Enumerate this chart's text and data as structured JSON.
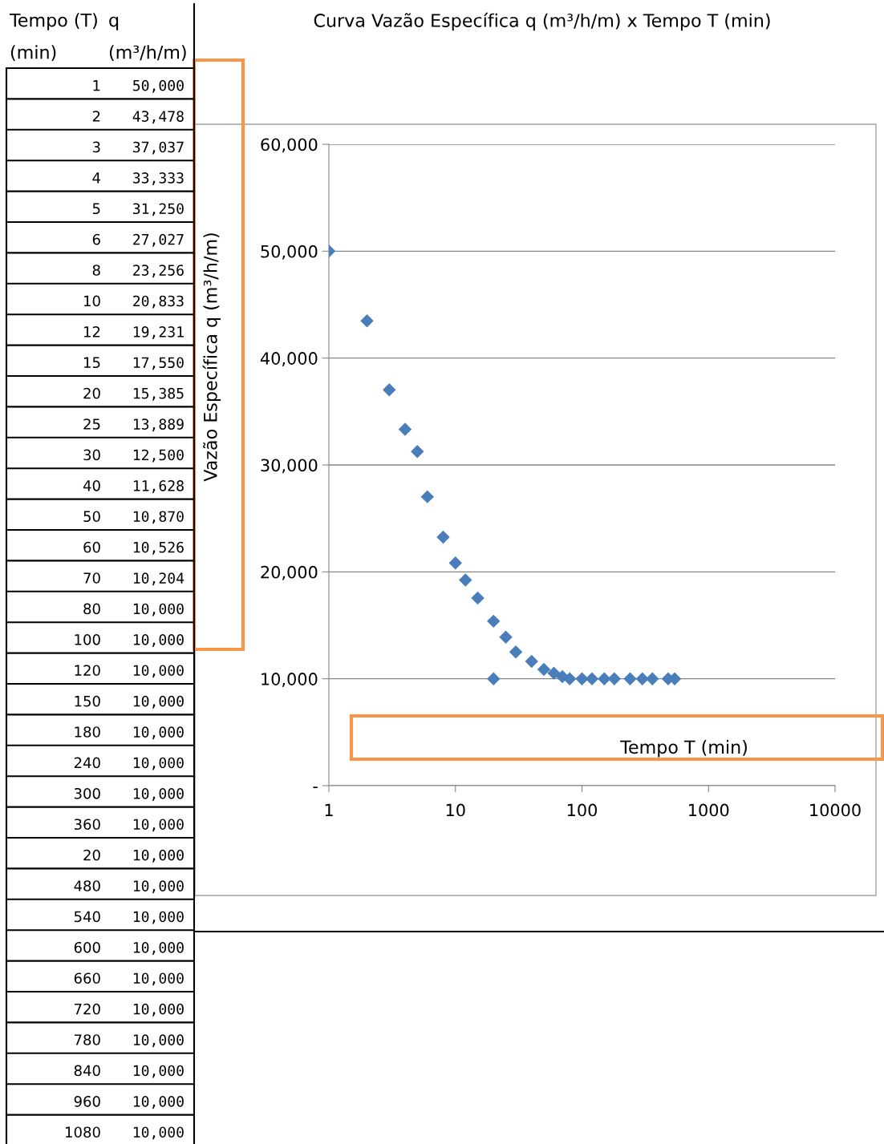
{
  "chart_data": {
    "type": "scatter",
    "title": "Curva Vazão Específica q (m³/h/m) x Tempo T (min)",
    "xlabel": "Tempo T (min)",
    "ylabel": "Vazão Específica q (m³/h/m)",
    "x": [
      1,
      2,
      3,
      4,
      5,
      6,
      8,
      10,
      12,
      15,
      20,
      25,
      30,
      40,
      50,
      60,
      70,
      80,
      100,
      120,
      150,
      180,
      240,
      300,
      360,
      20,
      480,
      540
    ],
    "series": [
      {
        "color": "#4a7ebb",
        "values": [
          50000,
          43478,
          37037,
          33333,
          31250,
          27027,
          23256,
          20833,
          19231,
          17550,
          15385,
          13889,
          12500,
          11628,
          10870,
          10526,
          10204,
          10000,
          10000,
          10000,
          10000,
          10000,
          10000,
          10000,
          10000,
          10000,
          10000,
          10000
        ]
      }
    ],
    "log": "x",
    "xlim": [
      1,
      10000
    ],
    "xticks": [
      1,
      10,
      100,
      1000,
      10000
    ],
    "ylim": [
      0,
      60000
    ],
    "yticks": [
      {
        "value": 0,
        "label": "-"
      },
      {
        "value": 10000,
        "label": "10,000"
      },
      {
        "value": 20000,
        "label": "20,000"
      },
      {
        "value": 30000,
        "label": "30,000"
      },
      {
        "value": 40000,
        "label": "40,000"
      },
      {
        "value": 50000,
        "label": "50,000"
      },
      {
        "value": 60000,
        "label": "60,000"
      }
    ],
    "grid": "y",
    "marker": "diamond",
    "legend": false,
    "annotations": [
      "Tempo (T)",
      "(min)",
      "q",
      "(m³/h/m)",
      "1",
      "50,000",
      "2",
      "43,478",
      "3",
      "37,037",
      "4",
      "33,333",
      "5",
      "31,250",
      "6",
      "27,027",
      "8",
      "23,256",
      "10",
      "20,833",
      "12",
      "19,231",
      "15",
      "17,550",
      "20",
      "15,385",
      "25",
      "13,889",
      "30",
      "12,500",
      "40",
      "11,628",
      "50",
      "10,870",
      "60",
      "10,526",
      "70",
      "10,204",
      "80",
      "10,000",
      "100",
      "10,000",
      "120",
      "10,000",
      "150",
      "10,000",
      "180",
      "10,000",
      "240",
      "10,000",
      "300",
      "10,000",
      "360",
      "10,000",
      "20",
      "10,000",
      "480",
      "10,000",
      "540",
      "10,000",
      "600",
      "10,000",
      "660",
      "10,000",
      "720",
      "10,000",
      "780",
      "10,000",
      "840",
      "10,000",
      "960",
      "10,000",
      "1080",
      "10,000"
    ]
  }
}
